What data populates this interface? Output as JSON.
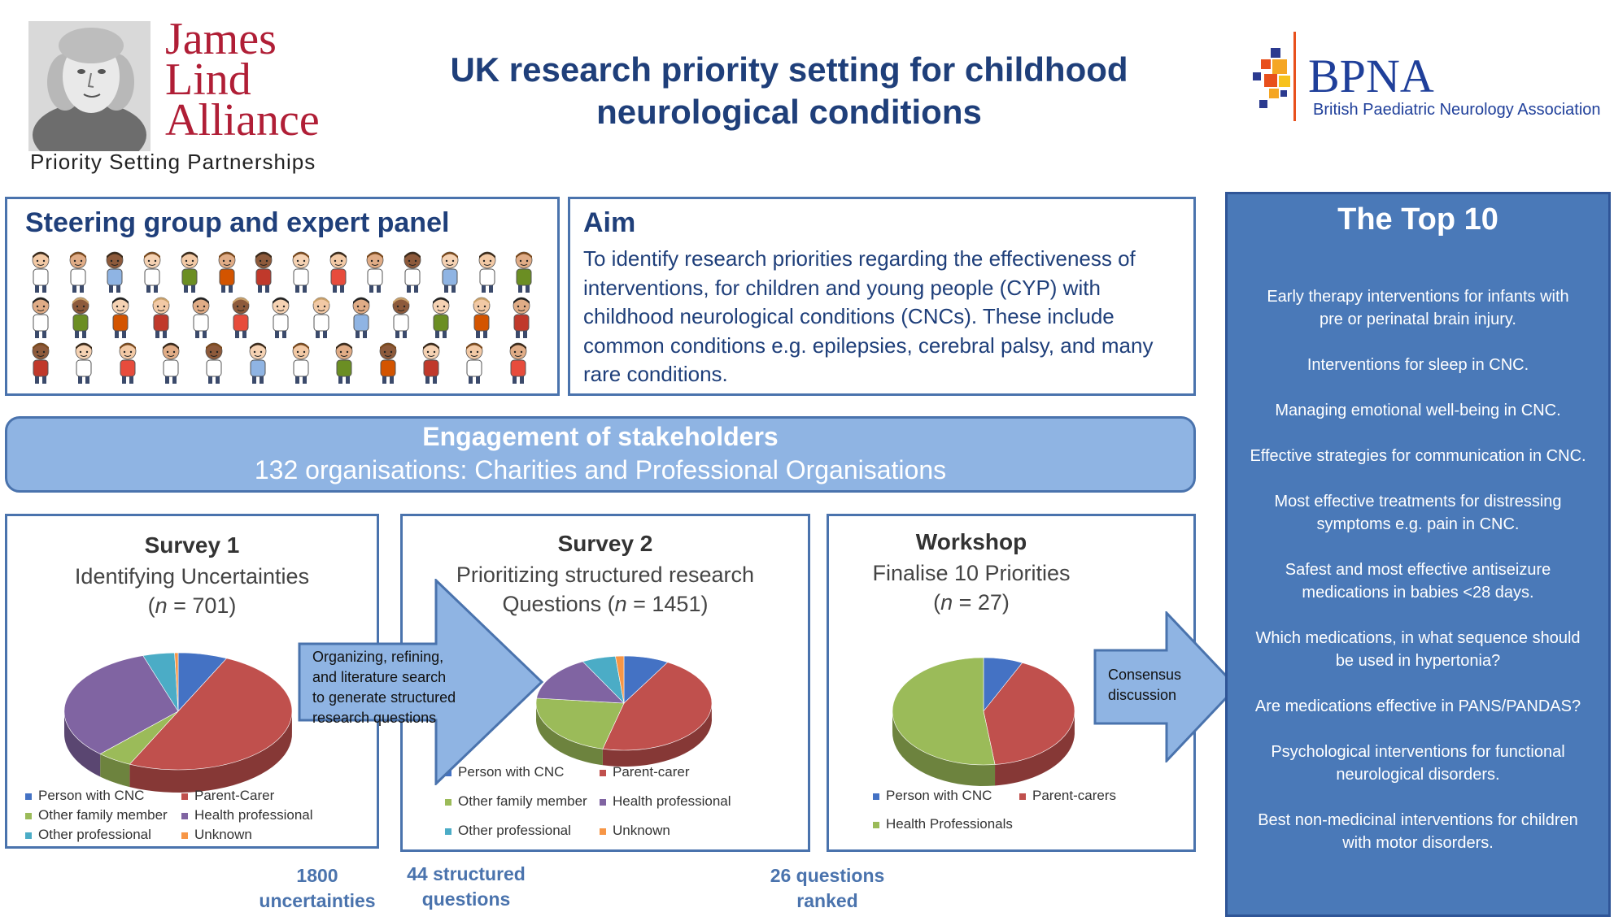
{
  "header": {
    "jla_logo": {
      "line1": "James",
      "line2": "Lind",
      "line3": "Alliance",
      "tagline": "Priority Setting Partnerships"
    },
    "title_line1": "UK research priority setting for childhood",
    "title_line2": "neurological conditions",
    "bpna_logo": {
      "name": "BPNA",
      "full": "British Paediatric Neurology Association"
    }
  },
  "steering": {
    "title": "Steering group and expert panel"
  },
  "aim": {
    "title": "Aim",
    "lines": [
      "To identify research priorities regarding the effectiveness of",
      "interventions, for children and young people (CYP) with",
      "childhood neurological conditions (CNCs). These include",
      "common conditions e.g. epilepsies, cerebral palsy, and many",
      "rare conditions."
    ]
  },
  "engagement": {
    "title": "Engagement of stakeholders",
    "subtitle": "132 organisations: Charities and Professional Organisations"
  },
  "survey1": {
    "title": "Survey 1",
    "sub1": "Identifying Uncertainties",
    "n_prefix": "n",
    "n_value": " = 701)",
    "legend": [
      "Person with CNC",
      "Parent-Carer",
      "Other family member",
      "Health professional",
      "Other professional",
      "Unknown"
    ]
  },
  "survey2": {
    "title": "Survey 2",
    "sub1": "Prioritizing structured research",
    "sub2_prefix": "Questions (",
    "n_prefix": "n",
    "n_value": " = 1451)",
    "legend": [
      "Person with CNC",
      "Parent-carer",
      "Other family member",
      "Health professional",
      "Other professional",
      "Unknown"
    ]
  },
  "workshop": {
    "title": "Workshop",
    "sub1": "Finalise 10 Priorities",
    "n_prefix": "n",
    "n_value": " = 27)",
    "legend": [
      "Person with CNC",
      "Parent-carers",
      "Health Professionals"
    ]
  },
  "arrows": {
    "arrow1_lines": [
      "Organizing, refining,",
      "and literature search",
      "to generate structured",
      "research questions"
    ],
    "arrow2_lines": [
      "Consensus",
      "discussion"
    ]
  },
  "counts": {
    "c1": [
      "1800",
      "uncertainties"
    ],
    "c2": [
      "44 structured",
      "questions"
    ],
    "c3": [
      "26 questions",
      "ranked"
    ]
  },
  "top10": {
    "title": "The Top 10",
    "items": [
      [
        "Early therapy interventions for infants with",
        "pre or perinatal brain injury."
      ],
      [
        "Interventions for sleep in CNC."
      ],
      [
        "Managing emotional well-being in CNC."
      ],
      [
        "Effective strategies for communication in CNC."
      ],
      [
        "Most effective treatments for distressing",
        "symptoms e.g. pain in CNC."
      ],
      [
        "Safest and most effective antiseizure",
        "medications in babies <28 days."
      ],
      [
        "Which medications, in what sequence should",
        "be used in hypertonia?"
      ],
      [
        "Are medications effective in PANS/PANDAS?"
      ],
      [
        "Psychological interventions for functional",
        "neurological disorders."
      ],
      [
        "Best non-medicinal interventions for children",
        "with motor disorders."
      ]
    ]
  },
  "colors": {
    "person": "#4472c4",
    "parent": "#c0504d",
    "family": "#9bbb59",
    "health": "#8064a2",
    "other": "#4bacc6",
    "unknown": "#f79646"
  },
  "chart_data": [
    {
      "type": "pie",
      "labels": [
        "Person with CNC",
        "Parent-Carer",
        "Other family member",
        "Health professional",
        "Other professional",
        "Unknown"
      ],
      "values": [
        7,
        50,
        5,
        33,
        4.5,
        0.5
      ]
    },
    {
      "type": "pie",
      "labels": [
        "Person with CNC",
        "Parent-carer",
        "Other family member",
        "Health professional",
        "Other professional",
        "Unknown"
      ],
      "values": [
        8,
        44,
        22,
        15,
        6,
        1.5
      ]
    },
    {
      "type": "pie",
      "labels": [
        "Person with CNC",
        "Parent-carers",
        "Health Professionals"
      ],
      "values": [
        7,
        41,
        52
      ]
    }
  ]
}
